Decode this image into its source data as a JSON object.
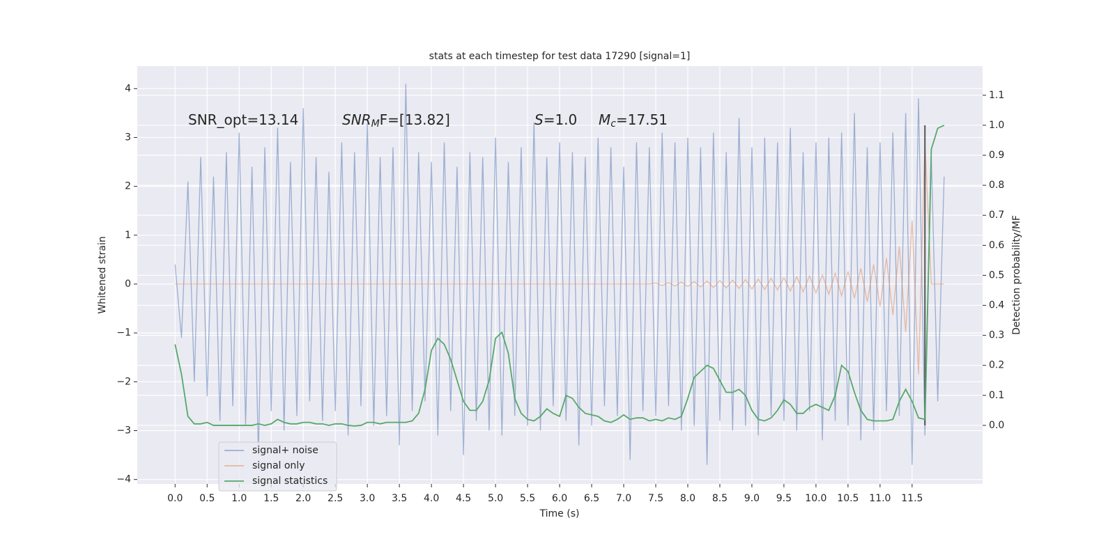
{
  "chart_data": {
    "type": "line",
    "title": "stats at each timestep for test data 17290 [signal=1]",
    "x_label": "Time (s)",
    "y_label": "Whitened strain",
    "y2_label": "Detection probability/MF",
    "x": [
      0,
      0.1,
      0.2,
      0.3,
      0.4,
      0.5,
      0.6,
      0.7,
      0.8,
      0.9,
      1,
      1.1,
      1.2,
      1.3,
      1.4,
      1.5,
      1.6,
      1.7,
      1.8,
      1.9,
      2,
      2.1,
      2.2,
      2.3,
      2.4,
      2.5,
      2.6,
      2.7,
      2.8,
      2.9,
      3,
      3.1,
      3.2,
      3.3,
      3.4,
      3.5,
      3.6,
      3.7,
      3.8,
      3.9,
      4,
      4.1,
      4.2,
      4.3,
      4.4,
      4.5,
      4.6,
      4.7,
      4.8,
      4.9,
      5,
      5.1,
      5.2,
      5.3,
      5.4,
      5.5,
      5.6,
      5.7,
      5.8,
      5.9,
      6,
      6.1,
      6.2,
      6.3,
      6.4,
      6.5,
      6.6,
      6.7,
      6.8,
      6.9,
      7,
      7.1,
      7.2,
      7.3,
      7.4,
      7.5,
      7.6,
      7.7,
      7.8,
      7.9,
      8,
      8.1,
      8.2,
      8.3,
      8.4,
      8.5,
      8.6,
      8.7,
      8.8,
      8.9,
      9,
      9.1,
      9.2,
      9.3,
      9.4,
      9.5,
      9.6,
      9.7,
      9.8,
      9.9,
      10,
      10.1,
      10.2,
      10.3,
      10.4,
      10.5,
      10.6,
      10.7,
      10.8,
      10.9,
      11,
      11.1,
      11.2,
      11.3,
      11.4,
      11.5,
      11.6,
      11.7,
      11.8,
      11.9,
      12
    ],
    "series": [
      {
        "name": "signal+ noise",
        "color": "#4c72b0",
        "opacity": 0.5,
        "axis": "y",
        "values": [
          0.4,
          -1.1,
          2.1,
          -2.0,
          2.6,
          -2.3,
          2.2,
          -2.8,
          2.7,
          -2.5,
          3.1,
          -2.9,
          2.4,
          -3.5,
          2.8,
          -2.6,
          3.2,
          -3.0,
          2.5,
          -2.7,
          3.6,
          -2.4,
          2.6,
          -2.8,
          2.3,
          -2.6,
          2.9,
          -3.1,
          2.7,
          -2.5,
          3.3,
          -2.9,
          2.6,
          -2.7,
          2.8,
          -3.3,
          4.1,
          -2.6,
          2.7,
          -2.4,
          2.5,
          -3.1,
          2.9,
          -2.6,
          2.4,
          -3.5,
          2.7,
          -2.8,
          2.6,
          -3.0,
          3.0,
          -3.1,
          2.5,
          -2.7,
          2.8,
          -2.9,
          3.3,
          -3.0,
          2.6,
          -2.5,
          2.9,
          -2.8,
          2.7,
          -3.3,
          2.6,
          -2.9,
          3.0,
          -2.5,
          2.8,
          -2.7,
          2.4,
          -3.6,
          2.9,
          -2.6,
          2.8,
          -2.7,
          3.1,
          -2.5,
          2.9,
          -3.0,
          3.0,
          -2.9,
          2.8,
          -3.7,
          3.1,
          -2.8,
          2.7,
          -3.0,
          3.4,
          -2.9,
          2.8,
          -3.1,
          3.0,
          -2.7,
          2.9,
          -2.8,
          3.2,
          -3.0,
          2.7,
          -2.6,
          2.9,
          -3.2,
          3.0,
          -2.8,
          3.1,
          -2.9,
          3.5,
          -3.2,
          2.8,
          -3.0,
          2.9,
          -2.6,
          3.1,
          -2.7,
          3.5,
          -3.7,
          3.8,
          -3.1,
          2.6,
          -2.4,
          2.2
        ]
      },
      {
        "name": "signal only",
        "color": "#dd8452",
        "opacity": 0.5,
        "axis": "y",
        "values": [
          0,
          0,
          0,
          0,
          0,
          0,
          0,
          0,
          0,
          0,
          0,
          0,
          0,
          0,
          0,
          0,
          0,
          0,
          0,
          0,
          0,
          0,
          0,
          0,
          0,
          0,
          0,
          0,
          0,
          0,
          0,
          0,
          0,
          0,
          0,
          0,
          0,
          0,
          0,
          0,
          0,
          0,
          0,
          0,
          0,
          0,
          0,
          0,
          0,
          0,
          0,
          0,
          0,
          0,
          0,
          0,
          0,
          0,
          0,
          0,
          0,
          0,
          0,
          0,
          0,
          0,
          0,
          0,
          0,
          0,
          0,
          0,
          0,
          0,
          0,
          0.02,
          -0.03,
          0.03,
          -0.04,
          0.04,
          -0.05,
          0.05,
          -0.06,
          0.06,
          -0.07,
          0.07,
          -0.08,
          0.08,
          -0.09,
          0.09,
          -0.1,
          0.1,
          -0.11,
          0.12,
          -0.12,
          0.13,
          -0.14,
          0.15,
          -0.16,
          0.17,
          -0.18,
          0.19,
          -0.21,
          0.22,
          -0.24,
          0.26,
          -0.29,
          0.32,
          -0.36,
          0.4,
          -0.46,
          0.53,
          -0.63,
          0.77,
          -0.98,
          1.3,
          -1.85,
          2.9,
          0,
          0,
          0
        ]
      },
      {
        "name": "signal statistics",
        "color": "#55a868",
        "opacity": 1,
        "axis": "y2",
        "values": [
          0.27,
          0.17,
          0.03,
          0.005,
          0.005,
          0.01,
          0,
          0,
          0,
          0,
          0,
          0,
          0,
          0.005,
          0,
          0.005,
          0.02,
          0.01,
          0.005,
          0.005,
          0.01,
          0.01,
          0.005,
          0.005,
          0,
          0.005,
          0.005,
          0,
          -0.002,
          0,
          0.01,
          0.01,
          0.005,
          0.01,
          0.01,
          0.01,
          0.01,
          0.015,
          0.04,
          0.12,
          0.25,
          0.29,
          0.27,
          0.22,
          0.15,
          0.08,
          0.05,
          0.05,
          0.08,
          0.15,
          0.29,
          0.31,
          0.24,
          0.09,
          0.04,
          0.02,
          0.015,
          0.03,
          0.055,
          0.04,
          0.03,
          0.1,
          0.09,
          0.06,
          0.04,
          0.035,
          0.03,
          0.015,
          0.01,
          0.02,
          0.035,
          0.02,
          0.025,
          0.025,
          0.015,
          0.02,
          0.015,
          0.025,
          0.02,
          0.03,
          0.09,
          0.16,
          0.18,
          0.2,
          0.19,
          0.15,
          0.11,
          0.11,
          0.12,
          0.1,
          0.05,
          0.02,
          0.015,
          0.025,
          0.05,
          0.085,
          0.07,
          0.04,
          0.04,
          0.06,
          0.07,
          0.06,
          0.05,
          0.1,
          0.2,
          0.18,
          0.11,
          0.05,
          0.02,
          0.015,
          0.015,
          0.015,
          0.02,
          0.08,
          0.12,
          0.08,
          0.025,
          0.02,
          0.92,
          0.99,
          1.0
        ]
      }
    ],
    "marker_x": 11.7,
    "marker_color": "#555555",
    "annotations": [
      {
        "text": "SNR_opt=13.14"
      },
      {
        "text": "SNR",
        "sub": "M",
        "rest": "F=[13.82]"
      },
      {
        "text": "S",
        "rest": "=1.0"
      },
      {
        "text": "M",
        "sub": "c",
        "rest": "=17.51"
      }
    ],
    "xlim": [
      -0.59,
      12.6
    ],
    "ylim": [
      -4.09,
      4.46
    ],
    "y2lim": [
      -0.195,
      1.197
    ],
    "xticks": [
      {
        "value": 0,
        "label": "0.0"
      },
      0.5,
      {
        "value": 1,
        "label": "1.0"
      },
      1.5,
      {
        "value": 2,
        "label": "2.0"
      },
      2.5,
      {
        "value": 3,
        "label": "3.0"
      },
      3.5,
      {
        "value": 4,
        "label": "4.0"
      },
      4.5,
      {
        "value": 5,
        "label": "5.0"
      },
      5.5,
      {
        "value": 6,
        "label": "6.0"
      },
      6.5,
      {
        "value": 7,
        "label": "7.0"
      },
      7.5,
      {
        "value": 8,
        "label": "8.0"
      },
      8.5,
      {
        "value": 9,
        "label": "9.0"
      },
      9.5,
      {
        "value": 10,
        "label": "10.0"
      },
      10.5,
      {
        "value": 11,
        "label": "11.0"
      },
      11.5
    ],
    "yticks": [
      {
        "value": -4,
        "label": "−4"
      },
      {
        "value": -3,
        "label": "−3"
      },
      {
        "value": -2,
        "label": "−2"
      },
      {
        "value": -1,
        "label": "−1"
      },
      0,
      1,
      2,
      3,
      4
    ],
    "y2ticks": [
      {
        "value": 0,
        "label": "0.0"
      },
      0.1,
      0.2,
      0.3,
      0.4,
      0.5,
      0.6,
      0.7,
      0.8,
      0.9,
      {
        "value": 1,
        "label": "1.0"
      },
      1.1
    ],
    "grid": true,
    "legend": "lower left",
    "background": "#eaeaf2"
  }
}
